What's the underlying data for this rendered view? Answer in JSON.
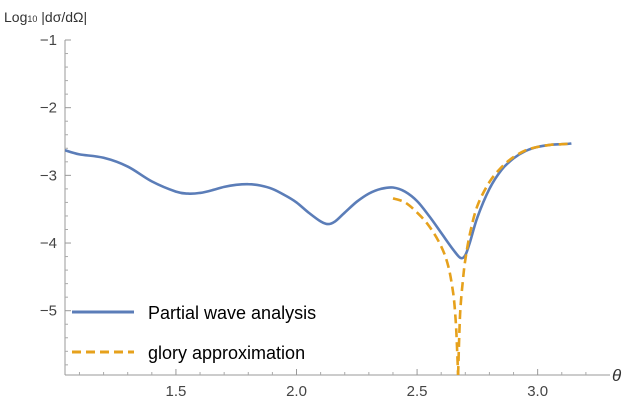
{
  "chart_data": {
    "type": "line",
    "ylabel_main": "Log",
    "ylabel_sub": "10",
    "ylabel_rest": " |dσ/dΩ|",
    "xlabel": "θ",
    "xlim": [
      1.04,
      3.3
    ],
    "ylim": [
      -5.95,
      -1
    ],
    "xticks": [
      "1.5",
      "2.0",
      "2.5",
      "3.0"
    ],
    "xtick_values": [
      1.5,
      2.0,
      2.5,
      3.0
    ],
    "yticks": [
      "−5",
      "−4",
      "−3",
      "−2",
      "−1"
    ],
    "ytick_values": [
      -5,
      -4,
      -3,
      -2,
      -1
    ],
    "legend_position": "bottom-left",
    "series": [
      {
        "name": "Partial wave analysis",
        "color": "#5b7db8",
        "style": "solid",
        "x": [
          1.04,
          1.1,
          1.2,
          1.3,
          1.4,
          1.5,
          1.55,
          1.6,
          1.65,
          1.7,
          1.75,
          1.8,
          1.85,
          1.9,
          1.95,
          2.0,
          2.05,
          2.1,
          2.13,
          2.16,
          2.2,
          2.25,
          2.3,
          2.35,
          2.4,
          2.45,
          2.5,
          2.55,
          2.6,
          2.65,
          2.68,
          2.7,
          2.72,
          2.75,
          2.8,
          2.85,
          2.9,
          2.95,
          3.0,
          3.05,
          3.1,
          3.14
        ],
        "y": [
          -2.63,
          -2.69,
          -2.74,
          -2.87,
          -3.09,
          -3.24,
          -3.27,
          -3.26,
          -3.22,
          -3.17,
          -3.14,
          -3.13,
          -3.15,
          -3.2,
          -3.29,
          -3.4,
          -3.55,
          -3.68,
          -3.72,
          -3.68,
          -3.55,
          -3.39,
          -3.27,
          -3.2,
          -3.18,
          -3.24,
          -3.38,
          -3.6,
          -3.85,
          -4.1,
          -4.22,
          -4.18,
          -3.98,
          -3.62,
          -3.2,
          -2.92,
          -2.75,
          -2.64,
          -2.58,
          -2.55,
          -2.54,
          -2.53
        ]
      },
      {
        "name": "glory approximation",
        "color": "#e6a11c",
        "style": "dashed",
        "x": [
          2.4,
          2.45,
          2.5,
          2.55,
          2.6,
          2.63,
          2.65,
          2.66,
          2.665,
          2.67
        ],
        "y": [
          -3.34,
          -3.4,
          -3.55,
          -3.75,
          -4.05,
          -4.35,
          -4.75,
          -5.15,
          -5.5,
          -5.95
        ],
        "x2": [
          2.67,
          2.675,
          2.68,
          2.69,
          2.7,
          2.72,
          2.75,
          2.8,
          2.85,
          2.9,
          2.95,
          3.0,
          3.05,
          3.1,
          3.14
        ],
        "y2": [
          -5.95,
          -5.35,
          -4.95,
          -4.55,
          -4.25,
          -3.85,
          -3.45,
          -3.1,
          -2.88,
          -2.73,
          -2.63,
          -2.58,
          -2.55,
          -2.54,
          -2.53
        ]
      }
    ]
  }
}
